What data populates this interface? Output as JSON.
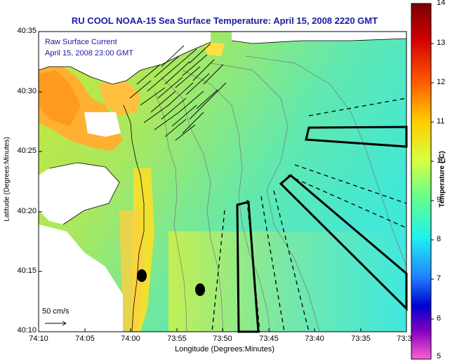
{
  "title": "RU COOL  NOAA-15  Sea Surface Temperature:  April 15, 2008 2220 GMT",
  "legend": {
    "line1": "Raw Surface Current",
    "line2": "April 15, 2008 23:00 GMT"
  },
  "scale_label": "50 cm/s",
  "axes": {
    "xlabel": "Longitude (Degrees:Minutes)",
    "ylabel": "Latitude (Degrees:Minutes)",
    "xticks": [
      "74:10",
      "74:05",
      "74:00",
      "73:55",
      "73:50",
      "73:45",
      "73:40",
      "73:35",
      "73:3"
    ],
    "yticks": [
      "40:35",
      "40:30",
      "40:25",
      "40:20",
      "40:15",
      "40:10"
    ]
  },
  "colorbar": {
    "label": "Temperature (°C)",
    "ticks": [
      "14",
      "13",
      "12",
      "11",
      "10",
      "9",
      "8",
      "7",
      "6",
      "5"
    ],
    "min": 5,
    "max": 14
  }
}
